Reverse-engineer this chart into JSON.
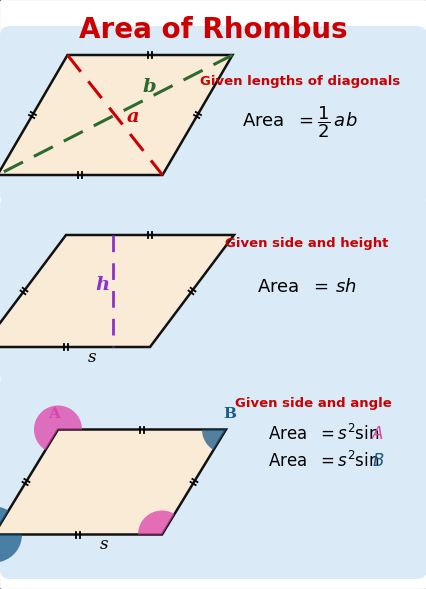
{
  "title": "Area of Rhombus",
  "title_color": "#cc0000",
  "bg_color": "#ffffff",
  "border_color": "#336699",
  "panel_bg": "#daeaf7",
  "rhombus_fill": "#faebd7",
  "rhombus_edge": "#111111",
  "panel1": {
    "label": "Given lengths of diagonals",
    "label_color": "#cc0000",
    "diag_a_color": "#cc0000",
    "diag_b_color": "#2d6a2d",
    "label_a": "a",
    "label_b": "b"
  },
  "panel2": {
    "label": "Given side and height",
    "label_color": "#cc0000",
    "height_color": "#8833cc",
    "label_h": "h",
    "label_s": "s"
  },
  "panel3": {
    "label": "Given side and angle",
    "label_color": "#cc0000",
    "color_A": "#dd44aa",
    "color_B": "#1a5c8a",
    "label_A": "A",
    "label_B": "B",
    "label_s": "s"
  }
}
